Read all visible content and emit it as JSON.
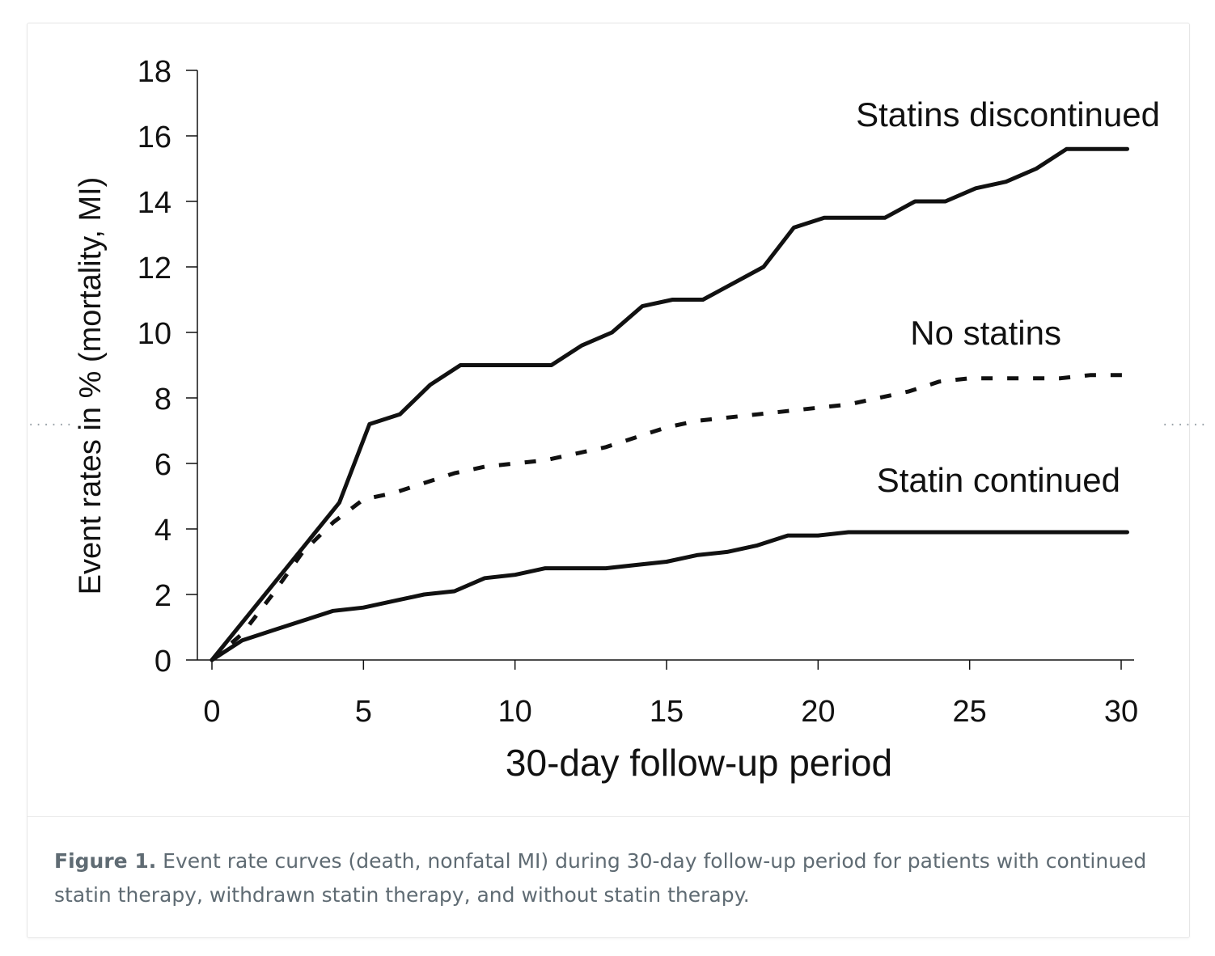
{
  "chart_data": {
    "type": "line",
    "title": "",
    "xlabel": "30-day follow-up period",
    "ylabel": "Event rates in % (mortality, MI)",
    "xlim": [
      0,
      30
    ],
    "ylim": [
      0,
      18
    ],
    "xticks": [
      0,
      5,
      10,
      15,
      20,
      25,
      30
    ],
    "yticks": [
      0,
      2,
      4,
      6,
      8,
      10,
      12,
      14,
      16,
      18
    ],
    "grid": false,
    "legend": "inline labels near line ends",
    "series": [
      {
        "name": "Statins discontinued",
        "style": "solid",
        "x": [
          0,
          4.2,
          5.2,
          6.2,
          7.2,
          8.2,
          9.2,
          10.2,
          11.2,
          12.2,
          13.2,
          14.2,
          15.2,
          16.2,
          17.2,
          18.2,
          19.2,
          20.2,
          21.2,
          22.2,
          23.2,
          24.2,
          25.2,
          26.2,
          27.2,
          28.2,
          29.2,
          30.2
        ],
        "y": [
          0,
          4.8,
          7.2,
          7.5,
          8.4,
          9.0,
          9.0,
          9.0,
          9.0,
          9.6,
          10.0,
          10.8,
          11.0,
          11.0,
          11.5,
          12.0,
          13.2,
          13.5,
          13.5,
          13.5,
          14.0,
          14.0,
          14.4,
          14.6,
          15.0,
          15.6,
          15.6,
          15.6
        ]
      },
      {
        "name": "No statins",
        "style": "dashed",
        "x": [
          0,
          1,
          2,
          3,
          4,
          5,
          6,
          7,
          8,
          9,
          10,
          11,
          12,
          13,
          14,
          15,
          16,
          17,
          18,
          19,
          20,
          21,
          22,
          23,
          24,
          25,
          26,
          27,
          28,
          29,
          30.2
        ],
        "y": [
          0,
          0.8,
          2.0,
          3.3,
          4.2,
          4.9,
          5.1,
          5.4,
          5.7,
          5.9,
          6.0,
          6.1,
          6.3,
          6.5,
          6.8,
          7.1,
          7.3,
          7.4,
          7.5,
          7.6,
          7.7,
          7.8,
          8.0,
          8.2,
          8.5,
          8.6,
          8.6,
          8.6,
          8.6,
          8.7,
          8.7
        ]
      },
      {
        "name": "Statin continued",
        "style": "solid",
        "x": [
          0,
          1,
          2,
          3,
          4,
          5,
          6,
          7,
          8,
          9,
          10,
          11,
          12,
          13,
          14,
          15,
          16,
          17,
          18,
          19,
          20,
          21,
          22,
          23,
          24,
          25,
          26,
          27,
          28,
          29,
          30.2
        ],
        "y": [
          0,
          0.6,
          0.9,
          1.2,
          1.5,
          1.6,
          1.8,
          2.0,
          2.1,
          2.5,
          2.6,
          2.8,
          2.8,
          2.8,
          2.9,
          3.0,
          3.2,
          3.3,
          3.5,
          3.8,
          3.8,
          3.9,
          3.9,
          3.9,
          3.9,
          3.9,
          3.9,
          3.9,
          3.9,
          3.9,
          3.9
        ]
      }
    ]
  },
  "caption": {
    "label": "Figure 1.",
    "text": " Event rate curves (death, nonfatal MI) during 30-day follow-up period for patients with continued statin therapy, withdrawn statin therapy, and without statin therapy."
  },
  "colors": {
    "line": "#111111",
    "caption": "#5f6b73",
    "border": "#e6e6e6"
  }
}
